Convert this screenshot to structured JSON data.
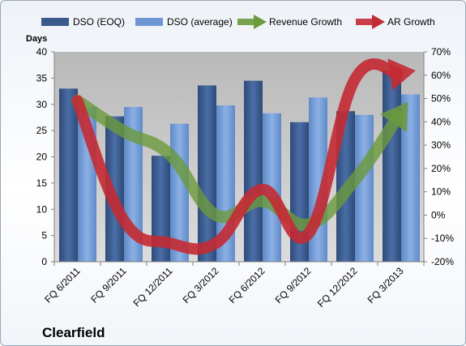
{
  "chart_data": {
    "type": "bar",
    "title": "",
    "company": "Clearfield",
    "ylabel": "Days",
    "y2label": "",
    "ylim": [
      0,
      40
    ],
    "y2lim": [
      -20,
      70
    ],
    "y_ticks": [
      "0",
      "5",
      "10",
      "15",
      "20",
      "25",
      "30",
      "35",
      "40"
    ],
    "y2_ticks": [
      "-20%",
      "-10%",
      "0%",
      "10%",
      "20%",
      "30%",
      "40%",
      "50%",
      "60%",
      "70%"
    ],
    "categories": [
      "FQ 6/2011",
      "FQ 9/2011",
      "FQ 12/2011",
      "FQ 3/2012",
      "FQ 6/2012",
      "FQ 9/2012",
      "FQ 12/2012",
      "FQ 3/2013"
    ],
    "legend_position": "top",
    "grid": false,
    "series": [
      {
        "name": "DSO (EOQ)",
        "kind": "bar",
        "axis": "left",
        "color": "#3b5a8c",
        "values": [
          33,
          27.7,
          20.2,
          33.6,
          34.5,
          26.6,
          28.7,
          36.5
        ]
      },
      {
        "name": "DSO (average)",
        "kind": "bar",
        "axis": "left",
        "color": "#6d97d4",
        "values": [
          29.5,
          29.5,
          26.3,
          29.8,
          28.3,
          31.3,
          28,
          31.9
        ]
      },
      {
        "name": "Revenue Growth",
        "kind": "line",
        "axis": "right",
        "color": "#6c9a3c",
        "values": [
          49,
          36,
          26,
          0,
          6,
          -4,
          15,
          44
        ]
      },
      {
        "name": "AR Growth",
        "kind": "line",
        "axis": "right",
        "color": "#c42a33",
        "values": [
          49,
          -2,
          -12,
          -12,
          11,
          -8,
          58,
          61
        ]
      }
    ]
  }
}
